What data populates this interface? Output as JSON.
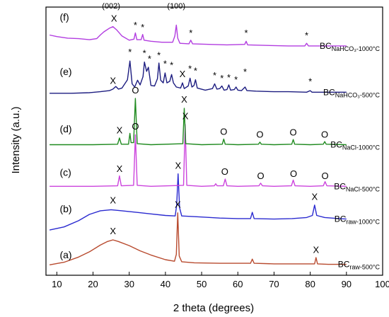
{
  "chart_data": {
    "type": "line",
    "xlabel": "2 theta (degrees)",
    "ylabel": "Intensity (a.u.)",
    "xlim": [
      7,
      100
    ],
    "xticks": [
      10,
      20,
      30,
      40,
      50,
      60,
      70,
      80,
      90,
      100
    ],
    "grid": false,
    "series": [
      {
        "panel": "(a)",
        "label_main": "BC",
        "label_sub": "raw-500°C",
        "color": "#b84a2e",
        "baseline": 0.0,
        "points": [
          [
            8,
            0.5
          ],
          [
            12,
            1.0
          ],
          [
            16,
            2.0
          ],
          [
            19,
            3.0
          ],
          [
            22,
            4.3
          ],
          [
            24,
            5.0
          ],
          [
            25.5,
            5.3
          ],
          [
            27,
            5.0
          ],
          [
            30,
            4.2
          ],
          [
            33,
            3.2
          ],
          [
            36,
            2.4
          ],
          [
            40,
            1.5
          ],
          [
            42.5,
            1.2
          ],
          [
            43.0,
            2.5
          ],
          [
            43.4,
            10.5
          ],
          [
            43.8,
            2.2
          ],
          [
            44.5,
            1.1
          ],
          [
            48,
            0.9
          ],
          [
            55,
            0.8
          ],
          [
            63.5,
            0.8
          ],
          [
            64.0,
            1.6
          ],
          [
            64.5,
            0.8
          ],
          [
            70,
            0.7
          ],
          [
            80,
            0.7
          ],
          [
            81.2,
            0.7
          ],
          [
            81.6,
            1.9
          ],
          [
            82.0,
            0.7
          ],
          [
            85,
            0.6
          ],
          [
            90,
            0.6
          ]
        ]
      },
      {
        "panel": "(b)",
        "label_main": "BC",
        "label_sub": "raw-1000°C",
        "color": "#2a2ad0",
        "baseline": 7.0,
        "points": [
          [
            8,
            0.2
          ],
          [
            12,
            0.8
          ],
          [
            16,
            2.0
          ],
          [
            19,
            3.2
          ],
          [
            22,
            3.9
          ],
          [
            25,
            4.1
          ],
          [
            28,
            3.9
          ],
          [
            32,
            3.6
          ],
          [
            36,
            3.3
          ],
          [
            40,
            3.0
          ],
          [
            42.7,
            2.9
          ],
          [
            43.1,
            5.0
          ],
          [
            43.5,
            11.0
          ],
          [
            43.9,
            4.5
          ],
          [
            44.5,
            2.9
          ],
          [
            50,
            2.7
          ],
          [
            55,
            2.5
          ],
          [
            60,
            2.4
          ],
          [
            63.5,
            2.4
          ],
          [
            64.0,
            3.6
          ],
          [
            64.5,
            2.4
          ],
          [
            70,
            2.3
          ],
          [
            75,
            2.4
          ],
          [
            79,
            2.6
          ],
          [
            80.6,
            3.0
          ],
          [
            81.2,
            5.0
          ],
          [
            81.8,
            3.0
          ],
          [
            84,
            2.6
          ],
          [
            88,
            2.4
          ],
          [
            90,
            2.3
          ]
        ]
      },
      {
        "panel": "(c)",
        "label_main": "BC",
        "label_sub": "NaCl-500°C",
        "color": "#cc44dd",
        "baseline": 15.0,
        "points": [
          [
            8,
            0.6
          ],
          [
            20,
            0.6
          ],
          [
            26.8,
            0.7
          ],
          [
            27.3,
            2.6
          ],
          [
            27.8,
            0.7
          ],
          [
            31.2,
            0.8
          ],
          [
            31.7,
            10.5
          ],
          [
            32.2,
            0.8
          ],
          [
            36,
            0.6
          ],
          [
            45.0,
            0.8
          ],
          [
            45.45,
            12.5
          ],
          [
            45.9,
            0.8
          ],
          [
            50,
            0.6
          ],
          [
            53.5,
            0.7
          ],
          [
            53.9,
            1.1
          ],
          [
            54.3,
            0.7
          ],
          [
            56.0,
            0.7
          ],
          [
            56.5,
            2.0
          ],
          [
            57.0,
            0.7
          ],
          [
            60,
            0.6
          ],
          [
            65.8,
            0.7
          ],
          [
            66.3,
            1.2
          ],
          [
            66.8,
            0.7
          ],
          [
            70,
            0.6
          ],
          [
            74.8,
            0.7
          ],
          [
            75.3,
            1.8
          ],
          [
            75.8,
            0.7
          ],
          [
            80,
            0.6
          ],
          [
            83.6,
            0.7
          ],
          [
            84.1,
            1.5
          ],
          [
            84.6,
            0.7
          ],
          [
            90,
            0.6
          ]
        ]
      },
      {
        "panel": "(d)",
        "label_main": "BC",
        "label_sub": "NaCl-1000°C",
        "color": "#1f8a1f",
        "baseline": 23.0,
        "points": [
          [
            8,
            0.6
          ],
          [
            20,
            0.6
          ],
          [
            26.8,
            0.7
          ],
          [
            27.3,
            1.9
          ],
          [
            27.8,
            0.7
          ],
          [
            29.8,
            0.7
          ],
          [
            30.2,
            2.8
          ],
          [
            30.5,
            1.0
          ],
          [
            31.2,
            1.0
          ],
          [
            31.7,
            9.5
          ],
          [
            32.2,
            0.8
          ],
          [
            36,
            0.6
          ],
          [
            44.8,
            0.8
          ],
          [
            45.2,
            7.6
          ],
          [
            45.6,
            0.8
          ],
          [
            50,
            0.6
          ],
          [
            55.7,
            0.7
          ],
          [
            56.1,
            1.7
          ],
          [
            56.5,
            0.7
          ],
          [
            60,
            0.6
          ],
          [
            65.7,
            0.7
          ],
          [
            66.1,
            1.1
          ],
          [
            66.5,
            0.7
          ],
          [
            70,
            0.6
          ],
          [
            74.9,
            0.7
          ],
          [
            75.3,
            1.6
          ],
          [
            75.7,
            0.7
          ],
          [
            80,
            0.6
          ],
          [
            83.6,
            0.7
          ],
          [
            84.0,
            1.2
          ],
          [
            84.4,
            0.7
          ],
          [
            90,
            0.6
          ]
        ]
      },
      {
        "panel": "(e)",
        "label_main": "BC",
        "label_sub": "NaHCO₃-500°C",
        "color": "#1c1c80",
        "baseline": 31.5,
        "points": [
          [
            8,
            2.0
          ],
          [
            14,
            2.0
          ],
          [
            19,
            2.1
          ],
          [
            22,
            2.3
          ],
          [
            24.5,
            2.5
          ],
          [
            25.5,
            2.8
          ],
          [
            26.3,
            3.3
          ],
          [
            27,
            2.8
          ],
          [
            28,
            3.0
          ],
          [
            29.5,
            4.6
          ],
          [
            30.2,
            8.2
          ],
          [
            30.8,
            3.8
          ],
          [
            31.5,
            3.2
          ],
          [
            32.3,
            4.5
          ],
          [
            33,
            3.6
          ],
          [
            33.8,
            5.2
          ],
          [
            34.2,
            8.0
          ],
          [
            34.8,
            6.2
          ],
          [
            35.3,
            7.0
          ],
          [
            36,
            3.5
          ],
          [
            37,
            3.4
          ],
          [
            37.8,
            4.8
          ],
          [
            38.2,
            7.8
          ],
          [
            38.7,
            4.5
          ],
          [
            39.4,
            4.0
          ],
          [
            39.9,
            5.9
          ],
          [
            40.4,
            4.0
          ],
          [
            41.2,
            4.3
          ],
          [
            41.7,
            5.6
          ],
          [
            42.2,
            4.0
          ],
          [
            43,
            3.2
          ],
          [
            44.2,
            3.0
          ],
          [
            44.7,
            4.0
          ],
          [
            45.2,
            2.9
          ],
          [
            46.3,
            3.4
          ],
          [
            46.8,
            4.9
          ],
          [
            47.3,
            3.2
          ],
          [
            47.9,
            3.5
          ],
          [
            48.3,
            4.6
          ],
          [
            48.8,
            3.0
          ],
          [
            51,
            2.6
          ],
          [
            53,
            2.9
          ],
          [
            53.6,
            3.8
          ],
          [
            54.2,
            2.8
          ],
          [
            55,
            2.9
          ],
          [
            55.6,
            3.4
          ],
          [
            56.2,
            2.6
          ],
          [
            57,
            2.7
          ],
          [
            57.5,
            3.6
          ],
          [
            58,
            2.6
          ],
          [
            59,
            2.7
          ],
          [
            59.5,
            3.2
          ],
          [
            60,
            2.6
          ],
          [
            61,
            2.5
          ],
          [
            62,
            3.2
          ],
          [
            62.5,
            2.5
          ],
          [
            65,
            2.4
          ],
          [
            70,
            2.3
          ],
          [
            74,
            2.3
          ],
          [
            79,
            2.2
          ],
          [
            80,
            2.5
          ],
          [
            80.5,
            2.2
          ],
          [
            85,
            2.2
          ],
          [
            90,
            2.2
          ]
        ]
      },
      {
        "panel": "(f)",
        "label_main": "BC",
        "label_sub": "NaHCO₃-1000°C",
        "color": "#b23de0",
        "baseline": 40.5,
        "points": [
          [
            8,
            4.2
          ],
          [
            10,
            3.9
          ],
          [
            13,
            3.6
          ],
          [
            16,
            3.5
          ],
          [
            19,
            3.3
          ],
          [
            21,
            3.5
          ],
          [
            22,
            4.2
          ],
          [
            23,
            4.8
          ],
          [
            24.5,
            5.5
          ],
          [
            25.5,
            5.8
          ],
          [
            26.5,
            5.2
          ],
          [
            28,
            4.0
          ],
          [
            30,
            3.2
          ],
          [
            31.3,
            3.4
          ],
          [
            31.7,
            4.6
          ],
          [
            32.1,
            3.3
          ],
          [
            33.3,
            3.3
          ],
          [
            33.7,
            4.3
          ],
          [
            34.1,
            3.2
          ],
          [
            36,
            3.0
          ],
          [
            39,
            2.8
          ],
          [
            42,
            2.8
          ],
          [
            42.6,
            4.0
          ],
          [
            43.0,
            6.1
          ],
          [
            43.4,
            3.6
          ],
          [
            44,
            2.6
          ],
          [
            46.5,
            2.5
          ],
          [
            47.0,
            3.2
          ],
          [
            47.5,
            2.5
          ],
          [
            52,
            2.4
          ],
          [
            57,
            2.3
          ],
          [
            61.9,
            2.4
          ],
          [
            62.3,
            3.0
          ],
          [
            62.7,
            2.3
          ],
          [
            68,
            2.2
          ],
          [
            74,
            2.1
          ],
          [
            78.5,
            2.1
          ],
          [
            79,
            2.6
          ],
          [
            79.5,
            2.1
          ],
          [
            85,
            2.1
          ],
          [
            90,
            2.1
          ]
        ]
      }
    ],
    "annotations": [
      {
        "text": "(a)",
        "x": 10.8,
        "y": 1.8,
        "kind": "panel"
      },
      {
        "text": "(b)",
        "x": 10.8,
        "y": 10.6,
        "kind": "panel"
      },
      {
        "text": "(c)",
        "x": 10.8,
        "y": 17.6,
        "kind": "panel"
      },
      {
        "text": "(d)",
        "x": 10.8,
        "y": 26.0,
        "kind": "panel"
      },
      {
        "text": "(e)",
        "x": 10.8,
        "y": 37.0,
        "kind": "panel"
      },
      {
        "text": "(f)",
        "x": 10.8,
        "y": 47.5,
        "kind": "panel"
      },
      {
        "text": "X",
        "x": 25.5,
        "y": 6.4,
        "kind": "peak"
      },
      {
        "text": "X",
        "x": 43.4,
        "y": 11.5,
        "kind": "peak"
      },
      {
        "text": "X",
        "x": 81.6,
        "y": 2.8,
        "kind": "peak"
      },
      {
        "text": "X",
        "x": 25.5,
        "y": 12.3,
        "kind": "peak"
      },
      {
        "text": "X",
        "x": 43.5,
        "y": 19.0,
        "kind": "peak"
      },
      {
        "text": "X",
        "x": 81.2,
        "y": 13.0,
        "kind": "peak"
      },
      {
        "text": "X",
        "x": 27.3,
        "y": 18.4,
        "kind": "peak"
      },
      {
        "text": "O",
        "x": 31.7,
        "y": 26.5,
        "kind": "peak"
      },
      {
        "text": "X",
        "x": 45.5,
        "y": 28.5,
        "kind": "peak"
      },
      {
        "text": "O",
        "x": 56.4,
        "y": 17.8,
        "kind": "peak"
      },
      {
        "text": "O",
        "x": 66.3,
        "y": 17.0,
        "kind": "peak"
      },
      {
        "text": "O",
        "x": 75.4,
        "y": 17.4,
        "kind": "peak"
      },
      {
        "text": "O",
        "x": 84.1,
        "y": 17.0,
        "kind": "peak"
      },
      {
        "text": "X",
        "x": 27.3,
        "y": 25.8,
        "kind": "peak"
      },
      {
        "text": "O",
        "x": 31.7,
        "y": 33.5,
        "kind": "peak"
      },
      {
        "text": "X",
        "x": 45.2,
        "y": 31.7,
        "kind": "peak"
      },
      {
        "text": "O",
        "x": 56.1,
        "y": 25.5,
        "kind": "peak"
      },
      {
        "text": "O",
        "x": 66.1,
        "y": 25.0,
        "kind": "peak"
      },
      {
        "text": "O",
        "x": 75.3,
        "y": 25.4,
        "kind": "peak"
      },
      {
        "text": "O",
        "x": 84.0,
        "y": 25.0,
        "kind": "peak"
      },
      {
        "text": "X",
        "x": 25.5,
        "y": 35.3,
        "kind": "peak"
      },
      {
        "text": "*",
        "x": 30.2,
        "y": 40.8,
        "kind": "peak"
      },
      {
        "text": "*",
        "x": 34.2,
        "y": 40.6,
        "kind": "peak"
      },
      {
        "text": "*",
        "x": 35.6,
        "y": 39.5,
        "kind": "peak"
      },
      {
        "text": "*",
        "x": 38.2,
        "y": 40.2,
        "kind": "peak"
      },
      {
        "text": "*",
        "x": 39.9,
        "y": 38.6,
        "kind": "peak"
      },
      {
        "text": "*",
        "x": 41.7,
        "y": 38.3,
        "kind": "peak"
      },
      {
        "text": "X",
        "x": 44.7,
        "y": 36.6,
        "kind": "peak"
      },
      {
        "text": "*",
        "x": 46.8,
        "y": 37.6,
        "kind": "peak"
      },
      {
        "text": "*",
        "x": 48.3,
        "y": 37.2,
        "kind": "peak"
      },
      {
        "text": "*",
        "x": 53.6,
        "y": 36.3,
        "kind": "peak"
      },
      {
        "text": "*",
        "x": 55.6,
        "y": 35.8,
        "kind": "peak"
      },
      {
        "text": "*",
        "x": 57.5,
        "y": 35.9,
        "kind": "peak"
      },
      {
        "text": "*",
        "x": 59.5,
        "y": 35.5,
        "kind": "peak"
      },
      {
        "text": "*",
        "x": 62.0,
        "y": 37.0,
        "kind": "peak"
      },
      {
        "text": "*",
        "x": 80.0,
        "y": 35.2,
        "kind": "peak"
      },
      {
        "text": "X",
        "x": 25.8,
        "y": 47.3,
        "kind": "peak"
      },
      {
        "text": "(002)",
        "x": 25.0,
        "y": 49.8,
        "kind": "hkl"
      },
      {
        "text": "*",
        "x": 31.7,
        "y": 46.0,
        "kind": "peak"
      },
      {
        "text": "*",
        "x": 33.7,
        "y": 45.6,
        "kind": "peak"
      },
      {
        "text": "(100)",
        "x": 43.0,
        "y": 49.8,
        "kind": "hkl"
      },
      {
        "text": "*",
        "x": 47.0,
        "y": 44.5,
        "kind": "peak"
      },
      {
        "text": "*",
        "x": 62.3,
        "y": 44.5,
        "kind": "peak"
      },
      {
        "text": "*",
        "x": 79.0,
        "y": 44.0,
        "kind": "peak"
      }
    ]
  }
}
